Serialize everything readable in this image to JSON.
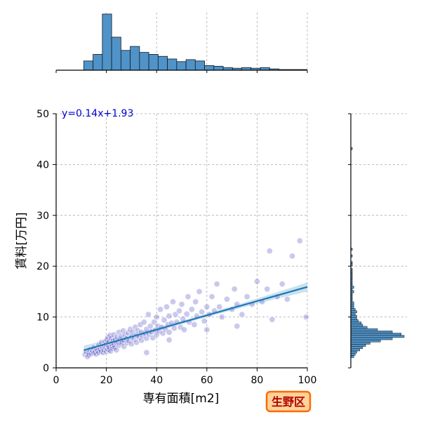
{
  "chart_data": {
    "type": "scatter",
    "equation_label": "y=0.14x+1.93",
    "xlabel": "専有面積[m2]",
    "ylabel": "賃料[万円]",
    "xlim": [
      0,
      100
    ],
    "ylim": [
      0,
      50
    ],
    "x_ticks": [
      0,
      20,
      40,
      60,
      80,
      100
    ],
    "y_ticks": [
      0,
      10,
      20,
      30,
      40,
      50
    ],
    "grid": true,
    "badge_text": "生野区",
    "regression": {
      "slope": 0.14,
      "intercept": 1.93,
      "x_range": [
        11,
        100
      ],
      "band_halfwidth": [
        0.35,
        0.9
      ]
    },
    "scatter_points": [
      [
        11.5,
        2.6
      ],
      [
        12.0,
        3.2
      ],
      [
        12.5,
        2.2
      ],
      [
        13.0,
        3.0
      ],
      [
        13.0,
        2.5
      ],
      [
        13.5,
        3.6
      ],
      [
        14.0,
        2.8
      ],
      [
        14.5,
        3.3
      ],
      [
        15.0,
        2.9
      ],
      [
        15.0,
        4.0
      ],
      [
        15.5,
        3.1
      ],
      [
        16.0,
        2.7
      ],
      [
        16.0,
        3.8
      ],
      [
        16.5,
        3.4
      ],
      [
        17.0,
        3.0
      ],
      [
        17.0,
        4.5
      ],
      [
        17.5,
        3.6
      ],
      [
        18.0,
        3.2
      ],
      [
        18.0,
        5.0
      ],
      [
        18.5,
        4.1
      ],
      [
        18.8,
        3.0
      ],
      [
        19.0,
        3.5
      ],
      [
        19.2,
        4.4
      ],
      [
        19.5,
        5.2
      ],
      [
        19.8,
        3.9
      ],
      [
        20.0,
        3.2
      ],
      [
        20.0,
        4.6
      ],
      [
        20.2,
        5.5
      ],
      [
        20.4,
        3.7
      ],
      [
        20.6,
        6.0
      ],
      [
        20.8,
        4.2
      ],
      [
        21.0,
        3.5
      ],
      [
        21.0,
        5.1
      ],
      [
        21.2,
        4.0
      ],
      [
        21.5,
        6.4
      ],
      [
        21.7,
        3.3
      ],
      [
        22.0,
        4.8
      ],
      [
        22.0,
        5.8
      ],
      [
        22.3,
        4.3
      ],
      [
        22.5,
        3.8
      ],
      [
        22.7,
        5.3
      ],
      [
        23.0,
        4.6
      ],
      [
        23.0,
        6.5
      ],
      [
        23.3,
        4.0
      ],
      [
        23.6,
        5.5
      ],
      [
        24.0,
        4.9
      ],
      [
        24.0,
        3.5
      ],
      [
        24.3,
        6.0
      ],
      [
        24.6,
        5.1
      ],
      [
        25.0,
        4.4
      ],
      [
        25.0,
        7.0
      ],
      [
        25.4,
        5.6
      ],
      [
        25.8,
        4.8
      ],
      [
        26.0,
        6.2
      ],
      [
        26.3,
        5.0
      ],
      [
        26.7,
        7.3
      ],
      [
        27.0,
        5.4
      ],
      [
        27.0,
        4.2
      ],
      [
        27.5,
        6.5
      ],
      [
        28.0,
        5.7
      ],
      [
        28.3,
        4.9
      ],
      [
        28.7,
        6.9
      ],
      [
        29.0,
        5.3
      ],
      [
        29.5,
        7.6
      ],
      [
        30.0,
        6.1
      ],
      [
        30.0,
        4.7
      ],
      [
        30.5,
        7.0
      ],
      [
        31.0,
        5.6
      ],
      [
        31.5,
        8.0
      ],
      [
        32.0,
        6.4
      ],
      [
        32.0,
        5.0
      ],
      [
        32.5,
        7.3
      ],
      [
        33.0,
        6.0
      ],
      [
        33.5,
        8.5
      ],
      [
        34.0,
        5.4
      ],
      [
        34.0,
        7.0
      ],
      [
        34.5,
        6.3
      ],
      [
        35.0,
        9.0
      ],
      [
        35.5,
        6.8
      ],
      [
        36.0,
        5.8
      ],
      [
        36.0,
        7.6
      ],
      [
        36.7,
        10.5
      ],
      [
        37.0,
        6.6
      ],
      [
        37.5,
        8.2
      ],
      [
        38.0,
        7.1
      ],
      [
        38.5,
        5.9
      ],
      [
        39.0,
        9.0
      ],
      [
        39.5,
        7.4
      ],
      [
        40.0,
        10.0
      ],
      [
        40.0,
        6.5
      ],
      [
        40.5,
        8.2
      ],
      [
        41.0,
        7.2
      ],
      [
        41.5,
        11.5
      ],
      [
        42.0,
        8.0
      ],
      [
        42.5,
        6.8
      ],
      [
        43.0,
        9.4
      ],
      [
        43.5,
        7.6
      ],
      [
        44.0,
        12.0
      ],
      [
        44.5,
        8.5
      ],
      [
        45.0,
        7.0
      ],
      [
        45.0,
        10.2
      ],
      [
        46.0,
        8.8
      ],
      [
        46.5,
        13.0
      ],
      [
        47.0,
        7.8
      ],
      [
        47.5,
        10.5
      ],
      [
        48.0,
        9.0
      ],
      [
        49.0,
        11.2
      ],
      [
        49.5,
        8.0
      ],
      [
        50.0,
        12.5
      ],
      [
        50.5,
        9.6
      ],
      [
        51.0,
        7.5
      ],
      [
        52.0,
        10.6
      ],
      [
        52.5,
        14.0
      ],
      [
        53.0,
        9.0
      ],
      [
        54.0,
        11.5
      ],
      [
        55.0,
        8.5
      ],
      [
        55.5,
        13.0
      ],
      [
        56.0,
        10.2
      ],
      [
        57.0,
        15.0
      ],
      [
        58.0,
        11.0
      ],
      [
        59.0,
        9.2
      ],
      [
        60.0,
        12.0
      ],
      [
        61.0,
        10.5
      ],
      [
        62.0,
        14.0
      ],
      [
        63.0,
        11.2
      ],
      [
        64.0,
        16.5
      ],
      [
        65.0,
        12.0
      ],
      [
        66.0,
        10.0
      ],
      [
        68.0,
        13.5
      ],
      [
        70.0,
        11.5
      ],
      [
        71.0,
        15.5
      ],
      [
        72.0,
        12.5
      ],
      [
        74.0,
        10.5
      ],
      [
        76.0,
        14.0
      ],
      [
        78.0,
        12.5
      ],
      [
        80.0,
        17.0
      ],
      [
        82.0,
        13.0
      ],
      [
        84.0,
        15.5
      ],
      [
        85.0,
        23.0
      ],
      [
        88.0,
        14.0
      ],
      [
        90.0,
        16.5
      ],
      [
        92.0,
        13.5
      ],
      [
        94.0,
        22.0
      ],
      [
        97.0,
        25.0
      ],
      [
        99.5,
        10.0
      ],
      [
        36.0,
        3.0
      ],
      [
        45.0,
        5.5
      ],
      [
        60.0,
        7.5
      ],
      [
        72.0,
        8.2
      ],
      [
        86.0,
        9.5
      ]
    ],
    "top_hist": {
      "bin_width": 3.7,
      "x_start": 11,
      "counts": [
        14,
        24,
        85,
        50,
        30,
        36,
        27,
        24,
        21,
        17,
        13,
        16,
        14,
        7,
        6,
        4,
        3,
        4,
        3,
        4,
        2,
        1,
        1,
        1
      ]
    },
    "right_hist": {
      "bin_width": 0.44,
      "y_start": 2,
      "counts": [
        2,
        3,
        4,
        6,
        8,
        10,
        13,
        20,
        28,
        36,
        34,
        28,
        18,
        11,
        8,
        7,
        5,
        4,
        4,
        3,
        4,
        3,
        2,
        2,
        2,
        1,
        1,
        1,
        1,
        2,
        1,
        2,
        1,
        1,
        1,
        1,
        1,
        1,
        1,
        1,
        0,
        1,
        1,
        0,
        0,
        1,
        0,
        0,
        1,
        0,
        0,
        0,
        0,
        0,
        0,
        0,
        0,
        0,
        0,
        0,
        0,
        0,
        0,
        0,
        0,
        0,
        0,
        0,
        0,
        0,
        0,
        0,
        0,
        0,
        0,
        0,
        0,
        0,
        0,
        0,
        0,
        0,
        0,
        0,
        0,
        0,
        0,
        0,
        0,
        0,
        0,
        0,
        0,
        1
      ]
    },
    "colors": {
      "scatter_fill": "#5a57c7",
      "scatter_edge": "#ffffff",
      "regression_line": "#1f77b4",
      "regression_band": "#9ecae1",
      "hist_fill": "#4f93c9",
      "hist_edge": "#1a1a1a",
      "equation_text": "#0000cd",
      "grid": "#aaaaaa",
      "badge_fill": "#ffd39a",
      "badge_edge": "#ff6a00",
      "badge_text": "#b00000"
    }
  }
}
